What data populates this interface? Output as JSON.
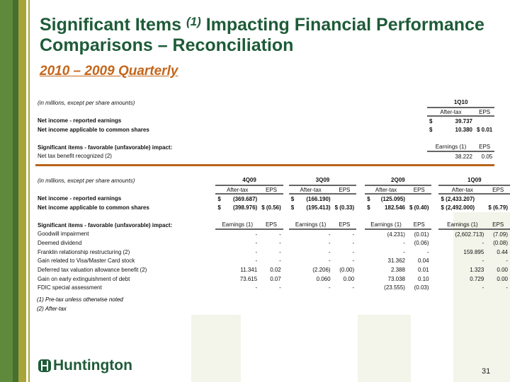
{
  "title": {
    "pre": "Significant Items ",
    "sup": "(1)",
    "post": " Impacting Financial Performance Comparisons – Reconciliation"
  },
  "subtitle": "2010 – 2009 Quarterly",
  "top_table": {
    "caption": "(in millions, except per share amounts)",
    "periods": [
      "1Q10"
    ],
    "col_headers": [
      "After-tax",
      "EPS"
    ],
    "reported": {
      "label": "Net income - reported earnings",
      "values": [
        [
          "$",
          "39.737",
          ""
        ]
      ]
    },
    "common": {
      "label": "Net income applicable to common shares",
      "values": [
        [
          "$",
          "10.380",
          "$  0.01"
        ]
      ]
    },
    "items_header": {
      "label": "Significant items - favorable (unfavorable) impact:",
      "cols": [
        "Earnings (1)",
        "EPS"
      ]
    },
    "items": [
      {
        "label": "Net tax benefit recognized (2)",
        "values": [
          [
            "38.222",
            "0.05"
          ]
        ]
      }
    ]
  },
  "bottom_table": {
    "caption": "(in millions, except per share amounts)",
    "periods": [
      "4Q09",
      "3Q09",
      "2Q09",
      "1Q09"
    ],
    "col_headers": [
      "After-tax",
      "EPS"
    ],
    "reported": {
      "label": "Net income - reported earnings",
      "values": [
        [
          "$",
          "(369.687)",
          ""
        ],
        [
          "$",
          "(166.190)",
          ""
        ],
        [
          "$",
          "(125.095)",
          ""
        ],
        [
          "",
          "$ (2,433.207)",
          ""
        ]
      ]
    },
    "common": {
      "label": "Net income applicable to common shares",
      "values": [
        [
          "$",
          "(398.976)",
          "$ (0.56)"
        ],
        [
          "$",
          "(195.413)",
          "$ (0.33)"
        ],
        [
          "$",
          "182.546",
          "$ (0.40)"
        ],
        [
          "",
          "$ (2,492.000)",
          "$   (6.79)"
        ]
      ]
    },
    "items_header": {
      "label": "Significant items - favorable (unfavorable) impact:",
      "cols": [
        "Earnings (1)",
        "EPS"
      ]
    },
    "items": [
      {
        "label": "Goodwill impairment",
        "values": [
          [
            "-",
            "-"
          ],
          [
            "-",
            "-"
          ],
          [
            "(4.231)",
            "(0.01)"
          ],
          [
            "(2,602.713)",
            "(7.09)"
          ]
        ]
      },
      {
        "label": "Deemed dividend",
        "values": [
          [
            "-",
            "-"
          ],
          [
            "-",
            "-"
          ],
          [
            "-",
            "(0.06)"
          ],
          [
            "-",
            "(0.08)"
          ]
        ]
      },
      {
        "label": "Franklin relationship restructuring (2)",
        "values": [
          [
            "-",
            "-"
          ],
          [
            "-",
            "-"
          ],
          [
            "-",
            "-"
          ],
          [
            "159.895",
            "0.44"
          ]
        ]
      },
      {
        "label": "Gain related to Visa/Master Card stock",
        "values": [
          [
            "-",
            "-"
          ],
          [
            "-",
            "-"
          ],
          [
            "31.362",
            "0.04"
          ],
          [
            "-",
            "-"
          ]
        ]
      },
      {
        "label": "Deferred tax valuation allowance benefit (2)",
        "values": [
          [
            "11.341",
            "0.02"
          ],
          [
            "(2.206)",
            "(0.00)"
          ],
          [
            "2.388",
            "0.01"
          ],
          [
            "1.323",
            "0.00"
          ]
        ]
      },
      {
        "label": "Gain on early extinguishment of debt",
        "values": [
          [
            "73.615",
            "0.07"
          ],
          [
            "0.060",
            "0.00"
          ],
          [
            "73.038",
            "0.10"
          ],
          [
            "0.729",
            "0.00"
          ]
        ]
      },
      {
        "label": "FDIC special assessment",
        "values": [
          [
            "-",
            "-"
          ],
          [
            "-",
            "-"
          ],
          [
            "(23.555)",
            "(0.03)"
          ],
          [
            "-",
            "-"
          ]
        ]
      }
    ]
  },
  "footnotes": [
    "(1) Pre-tax unless otherwise noted",
    "(2) After-tax"
  ],
  "logo_text": "Huntington",
  "page_number": "31"
}
